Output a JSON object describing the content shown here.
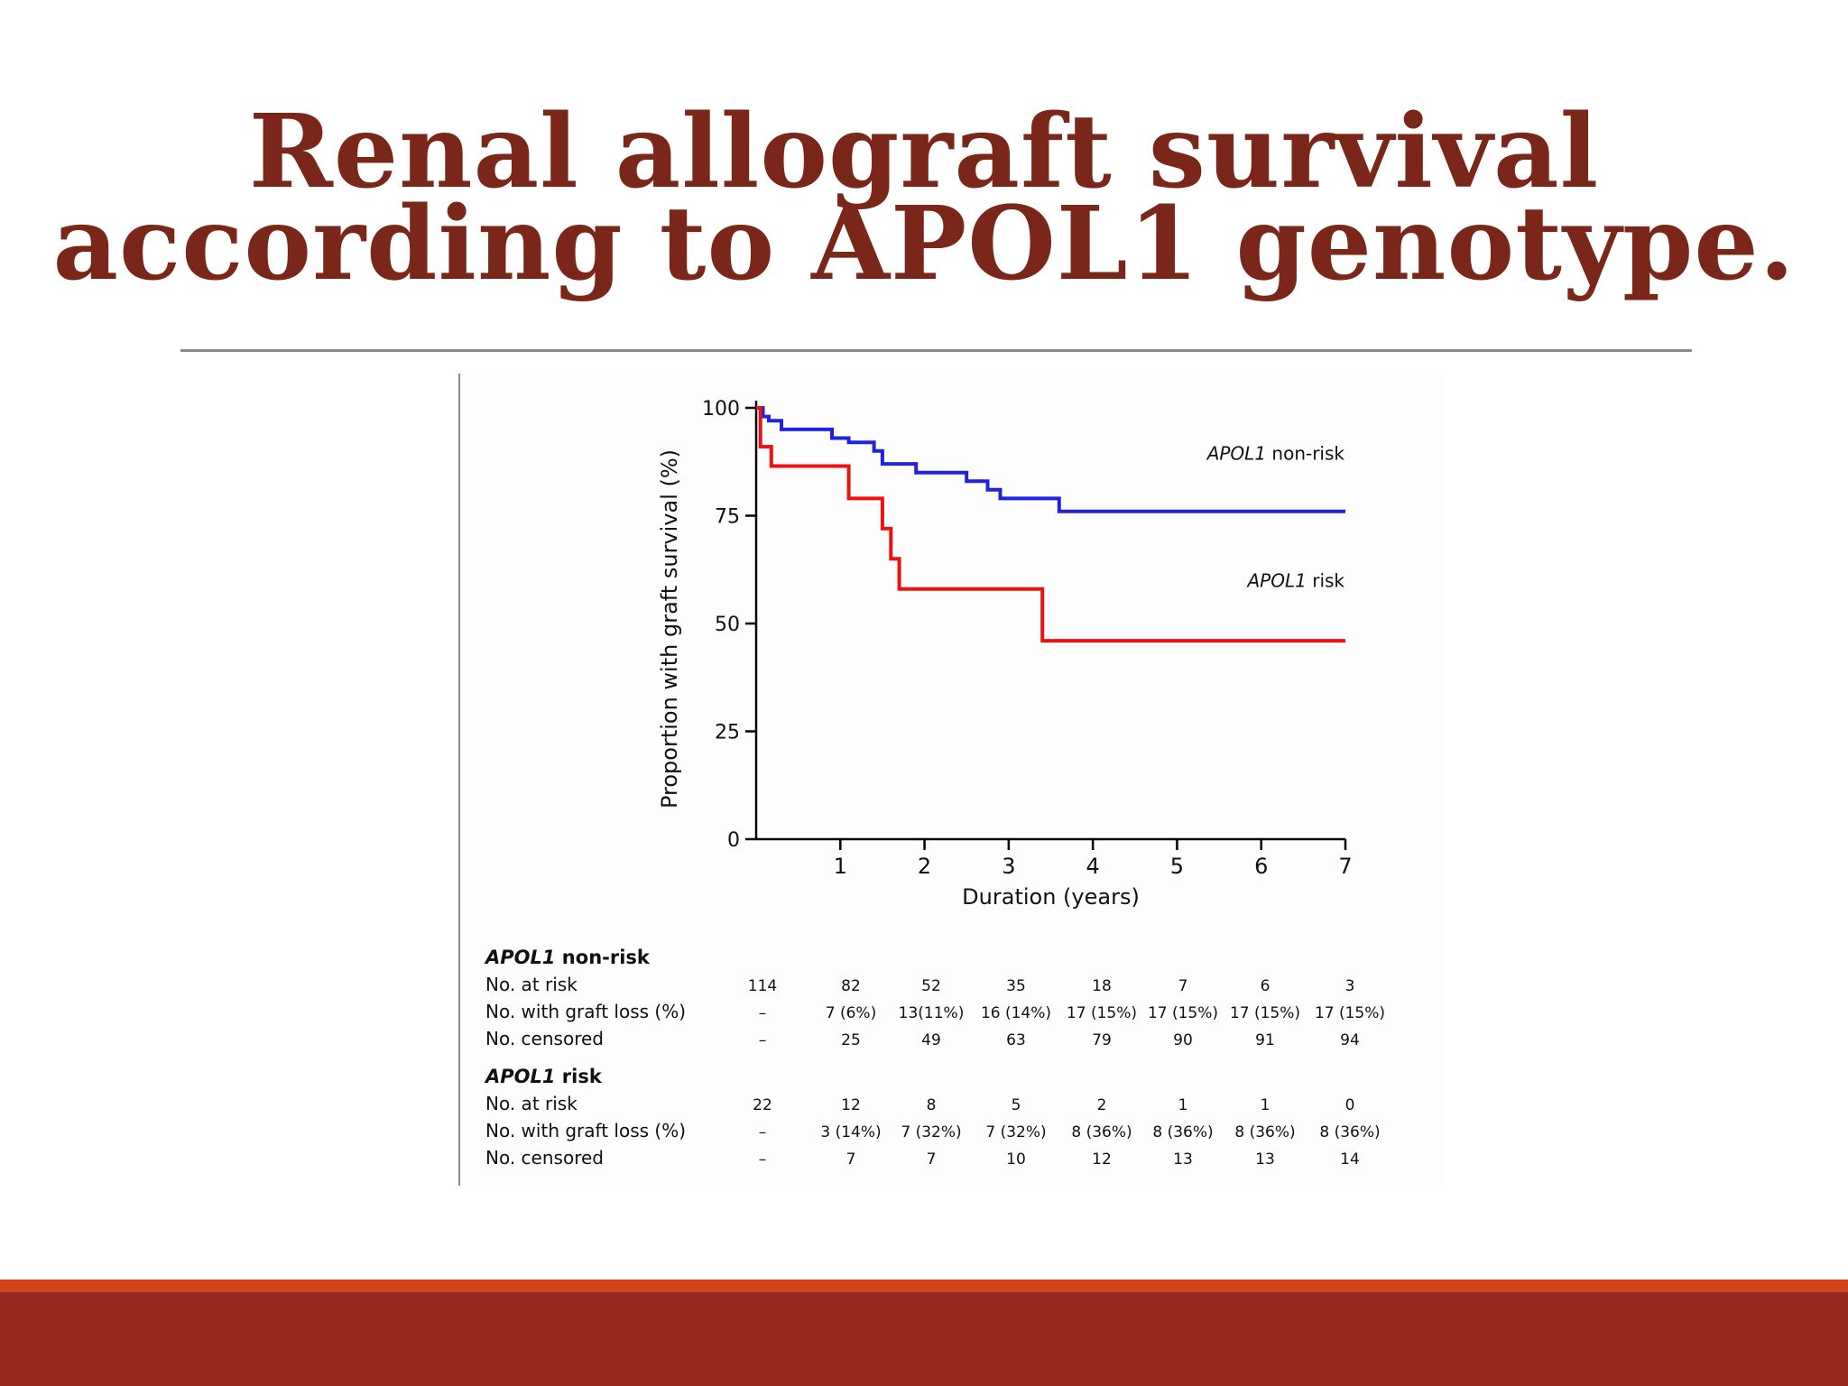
{
  "slide": {
    "title_line1": "Renal allograft survival",
    "title_line2": "according to APOL1 genotype.",
    "colors": {
      "title": "#7a2619",
      "band_top": "#d2431d",
      "band_bottom": "#972a1f"
    }
  },
  "chart_data": {
    "type": "line",
    "title": "",
    "xlabel": "Duration (years)",
    "ylabel": "Proportion with graft survival (%)",
    "xlim": [
      0,
      7
    ],
    "ylim": [
      0,
      100
    ],
    "x_ticks": [
      1,
      2,
      3,
      4,
      5,
      6,
      7
    ],
    "y_ticks": [
      0,
      25,
      50,
      75,
      100
    ],
    "grid": false,
    "step": true,
    "series": [
      {
        "name": "APOL1 non-risk",
        "label_italic": "APOL1",
        "label_rest": " non-risk",
        "color": "#2222dd",
        "points": [
          [
            0,
            100
          ],
          [
            0.08,
            100
          ],
          [
            0.08,
            98
          ],
          [
            0.15,
            98
          ],
          [
            0.15,
            97
          ],
          [
            0.3,
            97
          ],
          [
            0.3,
            95
          ],
          [
            0.9,
            95
          ],
          [
            0.9,
            93
          ],
          [
            1.1,
            93
          ],
          [
            1.1,
            92
          ],
          [
            1.4,
            92
          ],
          [
            1.4,
            90
          ],
          [
            1.5,
            90
          ],
          [
            1.5,
            87
          ],
          [
            1.9,
            87
          ],
          [
            1.9,
            85
          ],
          [
            2.5,
            85
          ],
          [
            2.5,
            83
          ],
          [
            2.75,
            83
          ],
          [
            2.75,
            81
          ],
          [
            2.9,
            81
          ],
          [
            2.9,
            79
          ],
          [
            3.6,
            79
          ],
          [
            3.6,
            76
          ],
          [
            7,
            76
          ]
        ]
      },
      {
        "name": "APOL1 risk",
        "label_italic": "APOL1",
        "label_rest": " risk",
        "color": "#ee1111",
        "points": [
          [
            0,
            100
          ],
          [
            0.05,
            100
          ],
          [
            0.05,
            91
          ],
          [
            0.18,
            91
          ],
          [
            0.18,
            86.5
          ],
          [
            1.1,
            86.5
          ],
          [
            1.1,
            79
          ],
          [
            1.5,
            79
          ],
          [
            1.5,
            72
          ],
          [
            1.6,
            72
          ],
          [
            1.6,
            65
          ],
          [
            1.7,
            65
          ],
          [
            1.7,
            58
          ],
          [
            3.4,
            58
          ],
          [
            3.4,
            46
          ],
          [
            7,
            46
          ]
        ]
      }
    ],
    "risk_table": {
      "groups": [
        {
          "italic": "APOL1",
          "rest": " non-risk",
          "rows": [
            {
              "label": "No. at risk",
              "values": [
                "114",
                "82",
                "52",
                "35",
                "18",
                "7",
                "6",
                "3"
              ]
            },
            {
              "label": "No. with graft loss (%)",
              "values": [
                "–",
                "7 (6%)",
                "13(11%)",
                "16 (14%)",
                "17 (15%)",
                "17 (15%)",
                "17 (15%)",
                "17 (15%)"
              ]
            },
            {
              "label": "No. censored",
              "values": [
                "–",
                "25",
                "49",
                "63",
                "79",
                "90",
                "91",
                "94"
              ]
            }
          ]
        },
        {
          "italic": "APOL1",
          "rest": " risk",
          "rows": [
            {
              "label": "No. at risk",
              "values": [
                "22",
                "12",
                "8",
                "5",
                "2",
                "1",
                "1",
                "0"
              ]
            },
            {
              "label": "No. with graft loss (%)",
              "values": [
                "–",
                "3 (14%)",
                "7 (32%)",
                "7 (32%)",
                "8 (36%)",
                "8 (36%)",
                "8 (36%)",
                "8 (36%)"
              ]
            },
            {
              "label": "No. censored",
              "values": [
                "–",
                "7",
                "7",
                "10",
                "12",
                "13",
                "13",
                "14"
              ]
            }
          ]
        }
      ]
    }
  }
}
